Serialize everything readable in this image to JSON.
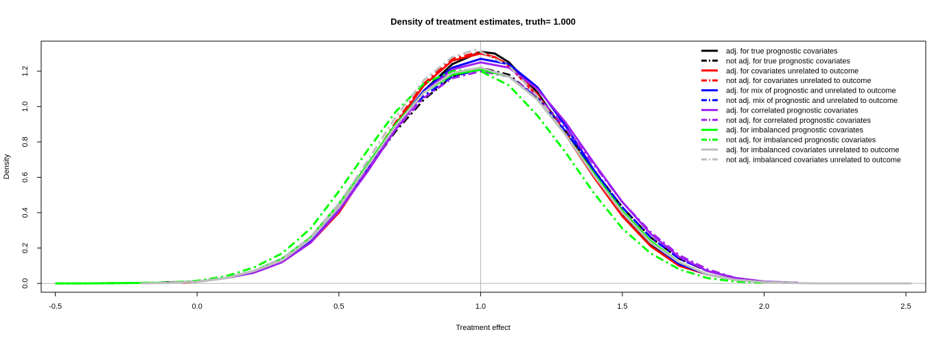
{
  "chart_data": {
    "type": "line",
    "title": "Density of treatment estimates, truth= 1.000",
    "xlabel": "Treatment effect",
    "ylabel": "Density",
    "xlim": [
      -0.55,
      2.57
    ],
    "ylim": [
      -0.05,
      1.37
    ],
    "xticks": [
      -0.5,
      0.0,
      0.5,
      1.0,
      1.5,
      2.0,
      2.5
    ],
    "xtick_labels": [
      "-0.5",
      "0.0",
      "0.5",
      "1.0",
      "1.5",
      "2.0",
      "2.5"
    ],
    "yticks": [
      0.0,
      0.2,
      0.4,
      0.6,
      0.8,
      1.0,
      1.2
    ],
    "ytick_labels": [
      "0.0",
      "0.2",
      "0.4",
      "0.6",
      "0.8",
      "1.0",
      "1.2"
    ],
    "reference_lines": {
      "vertical_x": 1.0,
      "horizontal_y": 0.0,
      "color": "#b0b0b0"
    },
    "legend_position": "top-right",
    "grid": false,
    "series": [
      {
        "name": "adj. for true prognostic covariates",
        "color": "#000000",
        "dash": "solid",
        "x": [
          -0.13,
          0.0,
          0.1,
          0.2,
          0.3,
          0.4,
          0.5,
          0.6,
          0.7,
          0.8,
          0.9,
          1.0,
          1.05,
          1.1,
          1.2,
          1.3,
          1.4,
          1.5,
          1.6,
          1.7,
          1.8,
          1.9,
          2.0,
          2.1
        ],
        "y": [
          0.005,
          0.01,
          0.03,
          0.07,
          0.13,
          0.24,
          0.42,
          0.65,
          0.89,
          1.09,
          1.24,
          1.31,
          1.3,
          1.25,
          1.08,
          0.85,
          0.61,
          0.39,
          0.22,
          0.11,
          0.05,
          0.02,
          0.008,
          0.003
        ]
      },
      {
        "name": "not adj. for true prognostic covariates",
        "color": "#000000",
        "dash": "dashdot",
        "x": [
          -0.13,
          0.0,
          0.1,
          0.2,
          0.3,
          0.4,
          0.5,
          0.6,
          0.7,
          0.8,
          0.9,
          1.0,
          1.1,
          1.2,
          1.3,
          1.4,
          1.5,
          1.6,
          1.7,
          1.8,
          1.9,
          2.0,
          2.12
        ],
        "y": [
          0.004,
          0.01,
          0.03,
          0.07,
          0.14,
          0.25,
          0.43,
          0.64,
          0.86,
          1.04,
          1.17,
          1.22,
          1.18,
          1.05,
          0.86,
          0.64,
          0.43,
          0.26,
          0.14,
          0.07,
          0.03,
          0.01,
          0.003
        ]
      },
      {
        "name": "adj. for covariates unrelated to outcome",
        "color": "#ff0000",
        "dash": "solid",
        "x": [
          -0.05,
          0.0,
          0.1,
          0.2,
          0.3,
          0.4,
          0.5,
          0.6,
          0.7,
          0.8,
          0.9,
          1.0,
          1.05,
          1.1,
          1.2,
          1.3,
          1.4,
          1.5,
          1.6,
          1.7,
          1.8,
          1.9,
          2.0,
          2.08
        ],
        "y": [
          0.004,
          0.01,
          0.03,
          0.07,
          0.13,
          0.23,
          0.4,
          0.64,
          0.9,
          1.12,
          1.26,
          1.3,
          1.28,
          1.23,
          1.06,
          0.84,
          0.6,
          0.38,
          0.21,
          0.1,
          0.05,
          0.02,
          0.007,
          0.003
        ]
      },
      {
        "name": "not adj. for covariates unrelated to outcome",
        "color": "#ff0000",
        "dash": "dashdot",
        "x": [
          -0.1,
          0.0,
          0.1,
          0.2,
          0.3,
          0.4,
          0.5,
          0.6,
          0.7,
          0.8,
          0.9,
          1.0,
          1.1,
          1.2,
          1.3,
          1.4,
          1.5,
          1.6,
          1.7,
          1.8,
          1.9,
          2.0,
          2.1
        ],
        "y": [
          0.004,
          0.01,
          0.03,
          0.07,
          0.14,
          0.25,
          0.43,
          0.66,
          0.91,
          1.13,
          1.27,
          1.31,
          1.24,
          1.07,
          0.85,
          0.62,
          0.4,
          0.23,
          0.12,
          0.05,
          0.02,
          0.008,
          0.003
        ]
      },
      {
        "name": "adj. for mix of prognostic and unrelated to outcome",
        "color": "#0000ff",
        "dash": "solid",
        "x": [
          -0.1,
          0.0,
          0.1,
          0.2,
          0.3,
          0.4,
          0.5,
          0.6,
          0.7,
          0.8,
          0.9,
          1.0,
          1.1,
          1.2,
          1.3,
          1.4,
          1.5,
          1.6,
          1.7,
          1.8,
          1.9,
          2.0,
          2.1
        ],
        "y": [
          0.004,
          0.01,
          0.03,
          0.07,
          0.13,
          0.24,
          0.42,
          0.65,
          0.89,
          1.09,
          1.22,
          1.27,
          1.24,
          1.11,
          0.89,
          0.64,
          0.41,
          0.23,
          0.11,
          0.05,
          0.02,
          0.008,
          0.003
        ]
      },
      {
        "name": "not adj. mix of prognostic and unrelated to outcome",
        "color": "#0000ff",
        "dash": "dashdot",
        "x": [
          -0.1,
          0.0,
          0.1,
          0.2,
          0.3,
          0.4,
          0.5,
          0.6,
          0.7,
          0.8,
          0.9,
          1.0,
          1.1,
          1.2,
          1.3,
          1.4,
          1.5,
          1.6,
          1.7,
          1.8,
          1.9,
          2.0,
          2.1
        ],
        "y": [
          0.004,
          0.01,
          0.03,
          0.07,
          0.14,
          0.26,
          0.45,
          0.67,
          0.89,
          1.06,
          1.17,
          1.21,
          1.17,
          1.05,
          0.86,
          0.64,
          0.43,
          0.26,
          0.14,
          0.07,
          0.03,
          0.01,
          0.004
        ]
      },
      {
        "name": "adj. for correlated prognostic covariates",
        "color": "#a020f0",
        "dash": "solid",
        "x": [
          -0.1,
          0.0,
          0.1,
          0.2,
          0.3,
          0.4,
          0.5,
          0.6,
          0.7,
          0.8,
          0.9,
          1.0,
          1.1,
          1.2,
          1.3,
          1.4,
          1.5,
          1.6,
          1.7,
          1.8,
          1.9,
          2.0,
          2.12
        ],
        "y": [
          0.004,
          0.01,
          0.03,
          0.06,
          0.12,
          0.23,
          0.41,
          0.63,
          0.87,
          1.08,
          1.21,
          1.25,
          1.22,
          1.1,
          0.91,
          0.68,
          0.46,
          0.28,
          0.15,
          0.07,
          0.03,
          0.01,
          0.003
        ]
      },
      {
        "name": "not adj. for correlated prognostic covariates",
        "color": "#a020f0",
        "dash": "dashdot",
        "x": [
          -0.5,
          -0.4,
          -0.1,
          0.0,
          0.1,
          0.2,
          0.3,
          0.4,
          0.5,
          0.6,
          0.7,
          0.8,
          0.9,
          1.0,
          1.1,
          1.2,
          1.3,
          1.4,
          1.5,
          1.6,
          1.7,
          1.8,
          1.9,
          2.0,
          2.12
        ],
        "y": [
          0.0,
          0.0,
          0.004,
          0.01,
          0.03,
          0.07,
          0.14,
          0.25,
          0.43,
          0.65,
          0.87,
          1.05,
          1.16,
          1.2,
          1.17,
          1.06,
          0.88,
          0.67,
          0.46,
          0.29,
          0.16,
          0.08,
          0.03,
          0.01,
          0.003
        ]
      },
      {
        "name": "adj. for imbalanced prognostic covariates",
        "color": "#00ff00",
        "dash": "solid",
        "x": [
          -0.5,
          -0.4,
          -0.1,
          0.0,
          0.1,
          0.2,
          0.3,
          0.4,
          0.5,
          0.6,
          0.7,
          0.8,
          0.9,
          1.0,
          1.1,
          1.2,
          1.3,
          1.4,
          1.5,
          1.6,
          1.7,
          1.8,
          1.9,
          2.0,
          2.1
        ],
        "y": [
          0.0,
          0.0,
          0.004,
          0.01,
          0.03,
          0.07,
          0.14,
          0.26,
          0.45,
          0.67,
          0.9,
          1.08,
          1.18,
          1.21,
          1.17,
          1.04,
          0.84,
          0.62,
          0.41,
          0.24,
          0.12,
          0.05,
          0.02,
          0.007,
          0.003
        ]
      },
      {
        "name": "not adj. for imbalanced prognostic covariates",
        "color": "#00ff00",
        "dash": "dashdot",
        "x": [
          -0.5,
          -0.4,
          -0.1,
          0.0,
          0.1,
          0.2,
          0.3,
          0.4,
          0.5,
          0.6,
          0.7,
          0.8,
          0.9,
          0.97,
          1.0,
          1.1,
          1.2,
          1.3,
          1.4,
          1.5,
          1.6,
          1.7,
          1.8,
          1.9,
          2.0
        ],
        "y": [
          0.0,
          0.0,
          0.005,
          0.015,
          0.04,
          0.09,
          0.17,
          0.31,
          0.52,
          0.75,
          0.97,
          1.13,
          1.2,
          1.21,
          1.2,
          1.12,
          0.95,
          0.74,
          0.51,
          0.31,
          0.17,
          0.08,
          0.03,
          0.01,
          0.004
        ]
      },
      {
        "name": "adj. for imbalanced covariates unrelated to outcome",
        "color": "#bebebe",
        "dash": "solid",
        "x": [
          -0.2,
          -0.1,
          0.0,
          0.1,
          0.2,
          0.3,
          0.4,
          0.5,
          0.6,
          0.7,
          0.8,
          0.9,
          1.0,
          1.1,
          1.2,
          1.3,
          1.4,
          1.5,
          1.6,
          1.7,
          1.8,
          1.9,
          2.0,
          2.1,
          2.2,
          2.52
        ],
        "y": [
          0.0,
          0.003,
          0.01,
          0.03,
          0.07,
          0.13,
          0.25,
          0.43,
          0.66,
          0.89,
          1.08,
          1.19,
          1.22,
          1.17,
          1.04,
          0.84,
          0.61,
          0.4,
          0.23,
          0.12,
          0.05,
          0.02,
          0.007,
          0.002,
          0.0,
          0.0
        ]
      },
      {
        "name": "not adj. imbalanced covariates unrelated to outcome",
        "color": "#bebebe",
        "dash": "dashdot",
        "x": [
          -0.1,
          0.0,
          0.1,
          0.2,
          0.3,
          0.4,
          0.5,
          0.6,
          0.7,
          0.8,
          0.9,
          0.98,
          1.0,
          1.1,
          1.2,
          1.3,
          1.4,
          1.5,
          1.6,
          1.7,
          1.8,
          1.9,
          2.0,
          2.1
        ],
        "y": [
          0.004,
          0.01,
          0.03,
          0.07,
          0.14,
          0.26,
          0.45,
          0.69,
          0.94,
          1.15,
          1.28,
          1.32,
          1.31,
          1.23,
          1.06,
          0.84,
          0.61,
          0.4,
          0.23,
          0.12,
          0.05,
          0.02,
          0.008,
          0.003
        ]
      }
    ]
  }
}
